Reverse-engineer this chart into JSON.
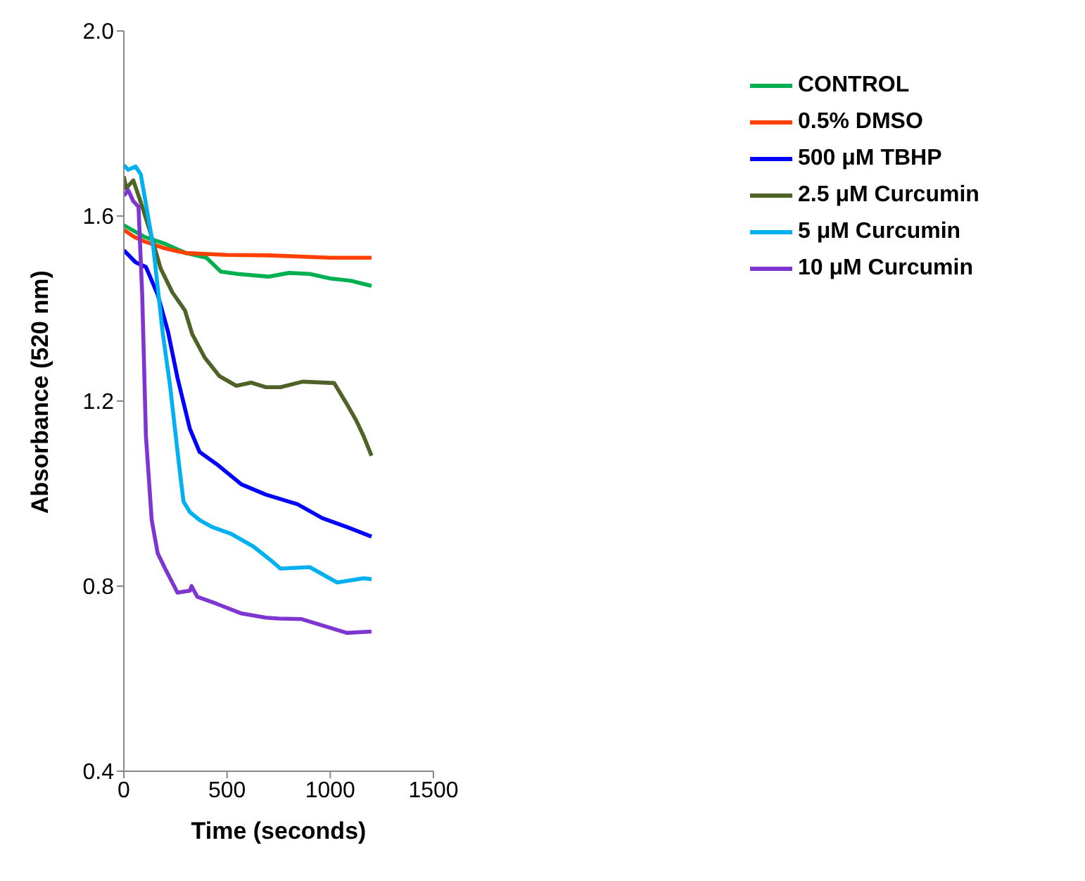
{
  "chart_data": {
    "type": "line",
    "xlabel": "Time (seconds)",
    "ylabel": "Absorbance (520 nm)",
    "xlim": [
      0,
      1500
    ],
    "xticks": [
      0,
      500,
      1000,
      1500
    ],
    "ylim": [
      0.4,
      2.0
    ],
    "yticks": [
      0.4,
      0.8,
      1.2,
      1.6,
      {
        "value": 2,
        "label": "2.0"
      }
    ],
    "grid": false,
    "legend": "right",
    "marker": "none",
    "line_style": "solid",
    "series": [
      {
        "name": "CONTROL",
        "color": "#00b050",
        "x": [
          0,
          100,
          200,
          300,
          400,
          470,
          550,
          700,
          800,
          900,
          1000,
          1100,
          1200
        ],
        "values": [
          1.58,
          1.555,
          1.54,
          1.52,
          1.51,
          1.48,
          1.475,
          1.469,
          1.477,
          1.475,
          1.465,
          1.46,
          1.449
        ]
      },
      {
        "name": "0.5% DMSO",
        "color": "#ff4000",
        "x": [
          0,
          50,
          100,
          200,
          300,
          500,
          700,
          1000,
          1200
        ],
        "values": [
          1.57,
          1.555,
          1.545,
          1.53,
          1.52,
          1.516,
          1.515,
          1.51,
          1.51
        ]
      },
      {
        "name": "500 μM TBHP",
        "color": "#0000ff",
        "x": [
          0,
          57,
          107,
          164,
          214,
          260,
          320,
          367,
          449,
          570,
          688,
          842,
          962,
          1080,
          1200
        ],
        "values": [
          1.526,
          1.5,
          1.49,
          1.43,
          1.35,
          1.25,
          1.14,
          1.09,
          1.064,
          1.02,
          0.998,
          0.977,
          0.947,
          0.928,
          0.907
        ]
      },
      {
        "name": "2.5 μM Curcumin",
        "color": "#4f6228",
        "x": [
          0,
          11,
          46,
          82,
          128,
          178,
          235,
          296,
          331,
          392,
          463,
          545,
          616,
          688,
          759,
          866,
          1019,
          1080,
          1126,
          1162,
          1200
        ],
        "values": [
          1.686,
          1.66,
          1.677,
          1.63,
          1.565,
          1.487,
          1.435,
          1.396,
          1.345,
          1.294,
          1.254,
          1.233,
          1.24,
          1.23,
          1.23,
          1.242,
          1.239,
          1.194,
          1.158,
          1.124,
          1.082
        ]
      },
      {
        "name": "5 μM Curcumin",
        "color": "#00b0f0",
        "x": [
          0,
          21,
          57,
          82,
          107,
          142,
          189,
          224,
          267,
          289,
          320,
          367,
          427,
          520,
          627,
          712,
          759,
          901,
          1033,
          1162,
          1200
        ],
        "values": [
          1.71,
          1.7,
          1.707,
          1.69,
          1.626,
          1.535,
          1.345,
          1.233,
          1.064,
          0.983,
          0.96,
          0.943,
          0.928,
          0.913,
          0.886,
          0.856,
          0.838,
          0.841,
          0.808,
          0.817,
          0.815
        ]
      },
      {
        "name": "10 μM Curcumin",
        "color": "#7f35d0",
        "x": [
          0,
          21,
          46,
          71,
          89,
          107,
          135,
          164,
          200,
          260,
          320,
          328,
          356,
          449,
          570,
          688,
          748,
          859,
          1080,
          1200
        ],
        "values": [
          1.644,
          1.656,
          1.632,
          1.62,
          1.43,
          1.125,
          0.943,
          0.871,
          0.838,
          0.786,
          0.79,
          0.8,
          0.777,
          0.762,
          0.741,
          0.732,
          0.73,
          0.729,
          0.699,
          0.702
        ]
      }
    ]
  }
}
